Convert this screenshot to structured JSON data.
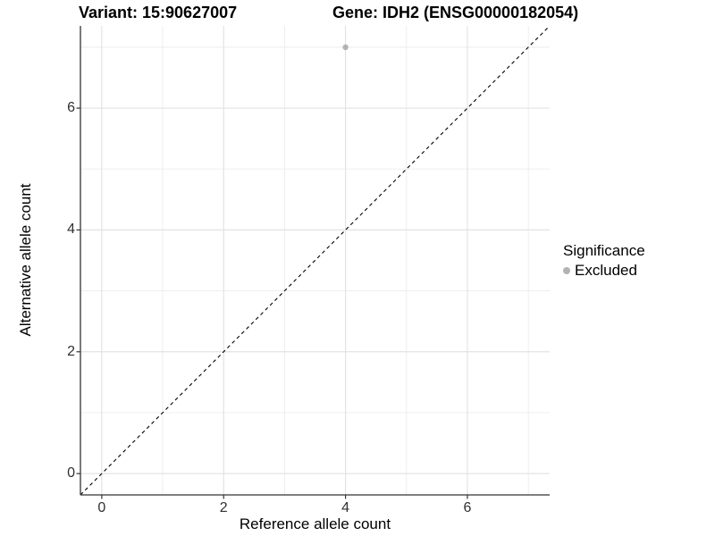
{
  "titles": {
    "variant": "Variant: 15:90627007",
    "gene": "Gene: IDH2 (ENSG00000182054)"
  },
  "axes": {
    "x_label": "Reference allele count",
    "y_label": "Alternative allele count"
  },
  "legend": {
    "title": "Significance",
    "items": [
      {
        "label": "Excluded",
        "color": "#b3b3b3"
      }
    ]
  },
  "chart_data": {
    "type": "scatter",
    "title": "Variant: 15:90627007 / Gene: IDH2 (ENSG00000182054)",
    "xlabel": "Reference allele count",
    "ylabel": "Alternative allele count",
    "xlim": [
      -0.35,
      7.35
    ],
    "ylim": [
      -0.35,
      7.35
    ],
    "x_ticks": [
      0,
      2,
      4,
      6
    ],
    "y_ticks": [
      0,
      2,
      4,
      6
    ],
    "x_minor_ticks": [
      1,
      3,
      5,
      7
    ],
    "y_minor_ticks": [
      1,
      3,
      5,
      7
    ],
    "grid": true,
    "legend_position": "right",
    "series": [
      {
        "name": "Excluded",
        "color": "#b3b3b3",
        "points": [
          {
            "x": 4,
            "y": 7
          }
        ]
      }
    ],
    "reference_line": {
      "type": "identity",
      "style": "dashed",
      "color": "#000000"
    }
  },
  "style": {
    "grid_major": "#e3e3e3",
    "grid_minor": "#ececec",
    "axis_line": "#333333",
    "tick_color": "#333333",
    "tick_text": "#303030"
  }
}
